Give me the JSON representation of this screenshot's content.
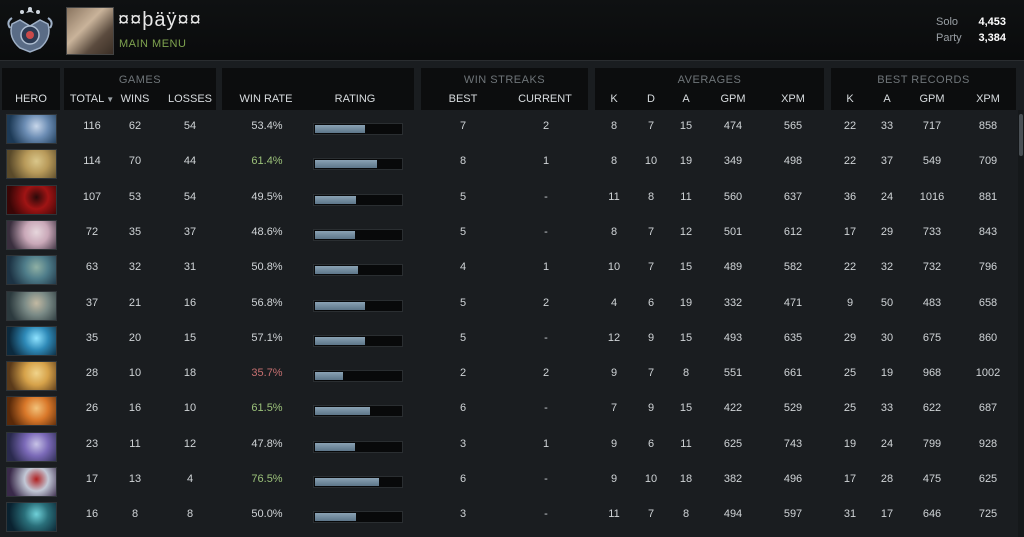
{
  "profile": {
    "username": "¤¤þäÿ¤¤",
    "menu_label": "MAIN MENU",
    "mmr": [
      {
        "label": "Solo",
        "value": "4,453"
      },
      {
        "label": "Party",
        "value": "3,384"
      }
    ]
  },
  "headers": {
    "hero": "HERO",
    "games": {
      "title": "GAMES",
      "total": "TOTAL",
      "wins": "WINS",
      "losses": "LOSSES"
    },
    "winrate": {
      "win_rate": "WIN RATE",
      "rating": "RATING"
    },
    "streaks": {
      "title": "WIN STREAKS",
      "best": "BEST",
      "current": "CURRENT"
    },
    "averages": {
      "title": "AVERAGES",
      "k": "K",
      "d": "D",
      "a": "A",
      "gpm": "GPM",
      "xpm": "XPM"
    },
    "best_records": {
      "title": "BEST RECORDS",
      "k": "K",
      "a": "A",
      "gpm": "GPM",
      "xpm": "XPM"
    }
  },
  "rows": [
    {
      "total": "116",
      "wins": "62",
      "losses": "54",
      "win_rate": "53.4%",
      "wr_class": "",
      "rating": 0.58,
      "best": "7",
      "current": "2",
      "k": "8",
      "d": "7",
      "a": "15",
      "gpm": "474",
      "xpm": "565",
      "bk": "22",
      "ba": "33",
      "bgpm": "717",
      "bxpm": "858",
      "hero_colors": [
        "#1d3a56",
        "#6c8db4",
        "#c7d6ea"
      ]
    },
    {
      "total": "114",
      "wins": "70",
      "losses": "44",
      "win_rate": "61.4%",
      "wr_class": "good",
      "rating": 0.72,
      "best": "8",
      "current": "1",
      "k": "8",
      "d": "10",
      "a": "19",
      "gpm": "349",
      "xpm": "498",
      "bk": "22",
      "ba": "37",
      "bgpm": "549",
      "bxpm": "709",
      "hero_colors": [
        "#5a4a2a",
        "#b89a5a",
        "#d9c68a"
      ]
    },
    {
      "total": "107",
      "wins": "53",
      "losses": "54",
      "win_rate": "49.5%",
      "wr_class": "",
      "rating": 0.48,
      "best": "5",
      "current": "-",
      "k": "11",
      "d": "8",
      "a": "11",
      "gpm": "560",
      "xpm": "637",
      "bk": "36",
      "ba": "24",
      "bgpm": "1016",
      "bxpm": "881",
      "hero_colors": [
        "#3a0606",
        "#a01414",
        "#2a0a0a"
      ]
    },
    {
      "total": "72",
      "wins": "35",
      "losses": "37",
      "win_rate": "48.6%",
      "wr_class": "",
      "rating": 0.46,
      "best": "5",
      "current": "-",
      "k": "8",
      "d": "7",
      "a": "12",
      "gpm": "501",
      "xpm": "612",
      "bk": "17",
      "ba": "29",
      "bgpm": "733",
      "bxpm": "843",
      "hero_colors": [
        "#3a2f3e",
        "#c9a8b8",
        "#e6d6dc"
      ]
    },
    {
      "total": "63",
      "wins": "32",
      "losses": "31",
      "win_rate": "50.8%",
      "wr_class": "",
      "rating": 0.5,
      "best": "4",
      "current": "1",
      "k": "10",
      "d": "7",
      "a": "15",
      "gpm": "489",
      "xpm": "582",
      "bk": "22",
      "ba": "32",
      "bgpm": "732",
      "bxpm": "796",
      "hero_colors": [
        "#1d3344",
        "#4f7d8a",
        "#8fb0a4"
      ]
    },
    {
      "total": "37",
      "wins": "21",
      "losses": "16",
      "win_rate": "56.8%",
      "wr_class": "",
      "rating": 0.58,
      "best": "5",
      "current": "2",
      "k": "4",
      "d": "6",
      "a": "19",
      "gpm": "332",
      "xpm": "471",
      "bk": "9",
      "ba": "50",
      "bgpm": "483",
      "bxpm": "658",
      "hero_colors": [
        "#2c3a3e",
        "#7a8a86",
        "#c2b9a2"
      ]
    },
    {
      "total": "35",
      "wins": "20",
      "losses": "15",
      "win_rate": "57.1%",
      "wr_class": "",
      "rating": 0.58,
      "best": "5",
      "current": "-",
      "k": "12",
      "d": "9",
      "a": "15",
      "gpm": "493",
      "xpm": "635",
      "bk": "29",
      "ba": "30",
      "bgpm": "675",
      "bxpm": "860",
      "hero_colors": [
        "#0c2a3e",
        "#2f8ab8",
        "#8fe3ff"
      ]
    },
    {
      "total": "28",
      "wins": "10",
      "losses": "18",
      "win_rate": "35.7%",
      "wr_class": "bad",
      "rating": 0.32,
      "best": "2",
      "current": "2",
      "k": "9",
      "d": "7",
      "a": "8",
      "gpm": "551",
      "xpm": "661",
      "bk": "25",
      "ba": "19",
      "bgpm": "968",
      "bxpm": "1002",
      "hero_colors": [
        "#5a3a1a",
        "#d6a24a",
        "#f0d38a"
      ]
    },
    {
      "total": "26",
      "wins": "16",
      "losses": "10",
      "win_rate": "61.5%",
      "wr_class": "good",
      "rating": 0.64,
      "best": "6",
      "current": "-",
      "k": "7",
      "d": "9",
      "a": "15",
      "gpm": "422",
      "xpm": "529",
      "bk": "25",
      "ba": "33",
      "bgpm": "622",
      "bxpm": "687",
      "hero_colors": [
        "#5a2a0a",
        "#d9782a",
        "#f2c27a"
      ]
    },
    {
      "total": "23",
      "wins": "11",
      "losses": "12",
      "win_rate": "47.8%",
      "wr_class": "",
      "rating": 0.46,
      "best": "3",
      "current": "1",
      "k": "9",
      "d": "6",
      "a": "11",
      "gpm": "625",
      "xpm": "743",
      "bk": "19",
      "ba": "24",
      "bgpm": "799",
      "bxpm": "928",
      "hero_colors": [
        "#2a2a4e",
        "#7b6ab8",
        "#c7c2e6"
      ]
    },
    {
      "total": "17",
      "wins": "13",
      "losses": "4",
      "win_rate": "76.5%",
      "wr_class": "good",
      "rating": 0.74,
      "best": "6",
      "current": "-",
      "k": "9",
      "d": "10",
      "a": "18",
      "gpm": "382",
      "xpm": "496",
      "bk": "17",
      "ba": "28",
      "bgpm": "475",
      "bxpm": "625",
      "hero_colors": [
        "#3a2a4a",
        "#c2c8d6",
        "#b02020"
      ]
    },
    {
      "total": "16",
      "wins": "8",
      "losses": "8",
      "win_rate": "50.0%",
      "wr_class": "",
      "rating": 0.48,
      "best": "3",
      "current": "-",
      "k": "11",
      "d": "7",
      "a": "8",
      "gpm": "494",
      "xpm": "597",
      "bk": "31",
      "ba": "17",
      "bgpm": "646",
      "bxpm": "725",
      "hero_colors": [
        "#0a2230",
        "#2a6f7a",
        "#6fd0d8"
      ]
    }
  ],
  "icons": {
    "rank": "rank-medal-icon",
    "sort": "sort-descending-icon"
  }
}
